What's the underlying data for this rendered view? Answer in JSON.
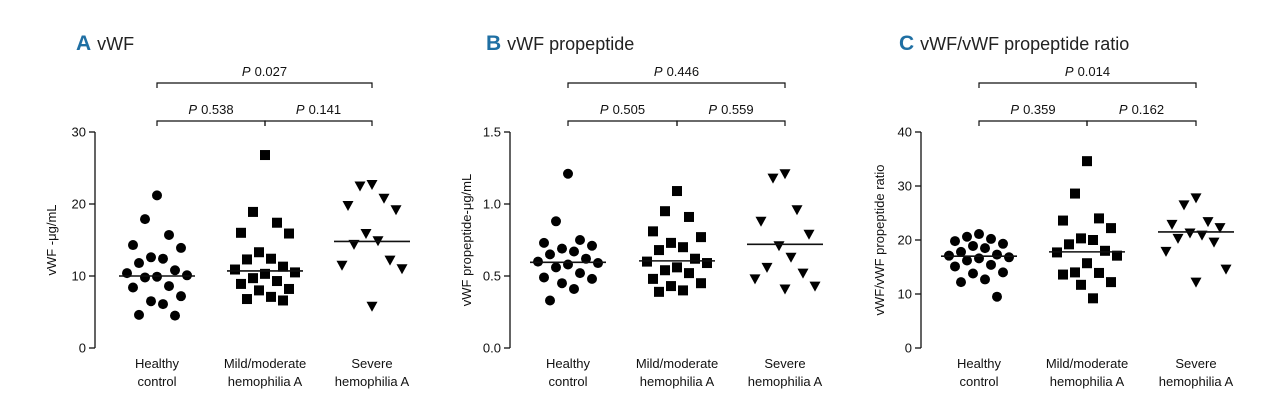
{
  "chart_data": [
    {
      "type": "scatter",
      "panel_letter": "A",
      "title": "vWF",
      "ylabel": "vWF -μg/mL",
      "ylim": [
        0,
        30
      ],
      "yticks": [
        "0",
        "10",
        "20",
        "30"
      ],
      "ytick_values": [
        0,
        10,
        20,
        30
      ],
      "categories": [
        {
          "lines": [
            "Healthy",
            "control"
          ]
        },
        {
          "lines": [
            "Mild/moderate",
            "hemophilia A"
          ]
        },
        {
          "lines": [
            "Severe",
            "hemophilia A"
          ]
        }
      ],
      "series": [
        {
          "name": "Healthy control",
          "marker": "circle",
          "mean": 10.0,
          "values": [
            21.2,
            17.9,
            15.7,
            14.3,
            13.9,
            12.6,
            12.4,
            11.8,
            10.8,
            10.4,
            10.1,
            9.9,
            9.8,
            8.6,
            8.4,
            7.2,
            6.5,
            6.1,
            4.6,
            4.5
          ]
        },
        {
          "name": "Mild/moderate hemophilia A",
          "marker": "square",
          "mean": 10.7,
          "values": [
            26.8,
            18.9,
            17.4,
            16.0,
            15.9,
            13.3,
            12.4,
            12.3,
            11.3,
            10.9,
            10.5,
            10.3,
            9.7,
            9.3,
            8.9,
            8.2,
            8.0,
            7.1,
            6.8,
            6.6
          ]
        },
        {
          "name": "Severe hemophilia A",
          "marker": "triangle",
          "mean": 14.8,
          "values": [
            22.7,
            22.5,
            20.8,
            19.8,
            19.2,
            15.9,
            14.9,
            14.4,
            12.2,
            11.5,
            11.0,
            5.8
          ]
        }
      ],
      "comparisons": [
        {
          "from": 0,
          "to": 1,
          "p_italic": "P",
          "p_value": "0.538",
          "level": 1
        },
        {
          "from": 1,
          "to": 2,
          "p_italic": "P",
          "p_value": "0.141",
          "level": 1
        },
        {
          "from": 0,
          "to": 2,
          "p_italic": "P",
          "p_value": "0.027",
          "level": 2
        }
      ]
    },
    {
      "type": "scatter",
      "panel_letter": "B",
      "title": "vWF propeptide",
      "ylabel": "vWF propeptide-μg/mL",
      "ylim": [
        0,
        1.5
      ],
      "yticks": [
        "0.0",
        "0.5",
        "1.0",
        "1.5"
      ],
      "ytick_values": [
        0,
        0.5,
        1.0,
        1.5
      ],
      "categories": [
        {
          "lines": [
            "Healthy",
            "control"
          ]
        },
        {
          "lines": [
            "Mild/moderate",
            "hemophilia A"
          ]
        },
        {
          "lines": [
            "Severe",
            "hemophilia A"
          ]
        }
      ],
      "series": [
        {
          "name": "Healthy control",
          "marker": "circle",
          "mean": 0.595,
          "values": [
            1.21,
            0.88,
            0.75,
            0.73,
            0.71,
            0.69,
            0.67,
            0.65,
            0.62,
            0.6,
            0.59,
            0.58,
            0.56,
            0.52,
            0.49,
            0.48,
            0.45,
            0.41,
            0.33
          ]
        },
        {
          "name": "Mild/moderate hemophilia A",
          "marker": "square",
          "mean": 0.605,
          "values": [
            1.09,
            0.95,
            0.91,
            0.81,
            0.77,
            0.73,
            0.7,
            0.68,
            0.62,
            0.6,
            0.59,
            0.56,
            0.54,
            0.52,
            0.48,
            0.45,
            0.43,
            0.4,
            0.39
          ]
        },
        {
          "name": "Severe hemophilia A",
          "marker": "triangle",
          "mean": 0.72,
          "values": [
            1.21,
            1.18,
            0.96,
            0.88,
            0.79,
            0.71,
            0.63,
            0.56,
            0.52,
            0.48,
            0.43,
            0.41
          ]
        }
      ],
      "comparisons": [
        {
          "from": 0,
          "to": 1,
          "p_italic": "P",
          "p_value": "0.505",
          "level": 1
        },
        {
          "from": 1,
          "to": 2,
          "p_italic": "P",
          "p_value": "0.559",
          "level": 1
        },
        {
          "from": 0,
          "to": 2,
          "p_italic": "P",
          "p_value": "0.446",
          "level": 2
        }
      ]
    },
    {
      "type": "scatter",
      "panel_letter": "C",
      "title": "vWF/vWF propeptide ratio",
      "ylabel": "vWF/vWF propeptide ratio",
      "ylim": [
        0,
        40
      ],
      "yticks": [
        "0",
        "10",
        "20",
        "30",
        "40"
      ],
      "ytick_values": [
        0,
        10,
        20,
        30,
        40
      ],
      "categories": [
        {
          "lines": [
            "Healthy",
            "control"
          ]
        },
        {
          "lines": [
            "Mild/moderate",
            "hemophilia A"
          ]
        },
        {
          "lines": [
            "Severe",
            "hemophilia A"
          ]
        }
      ],
      "series": [
        {
          "name": "Healthy control",
          "marker": "circle",
          "mean": 17.0,
          "values": [
            21.1,
            20.6,
            20.2,
            19.8,
            19.3,
            18.9,
            18.5,
            17.8,
            17.3,
            17.1,
            16.8,
            16.6,
            16.2,
            15.4,
            15.1,
            14.0,
            13.8,
            12.7,
            12.2,
            9.5
          ]
        },
        {
          "name": "Mild/moderate hemophilia A",
          "marker": "square",
          "mean": 17.8,
          "values": [
            34.6,
            28.6,
            24.0,
            23.6,
            22.2,
            20.3,
            20.0,
            19.2,
            18.0,
            17.7,
            17.1,
            15.7,
            14.0,
            13.9,
            13.6,
            12.2,
            11.7,
            9.2
          ]
        },
        {
          "name": "Severe hemophilia A",
          "marker": "triangle",
          "mean": 21.5,
          "values": [
            27.8,
            26.5,
            23.4,
            22.9,
            22.3,
            21.3,
            20.9,
            20.3,
            19.6,
            17.9,
            14.6,
            12.2
          ]
        }
      ],
      "comparisons": [
        {
          "from": 0,
          "to": 1,
          "p_italic": "P",
          "p_value": "0.359",
          "level": 1
        },
        {
          "from": 1,
          "to": 2,
          "p_italic": "P",
          "p_value": "0.162",
          "level": 1
        },
        {
          "from": 0,
          "to": 2,
          "p_italic": "P",
          "p_value": "0.014",
          "level": 2
        }
      ]
    }
  ]
}
